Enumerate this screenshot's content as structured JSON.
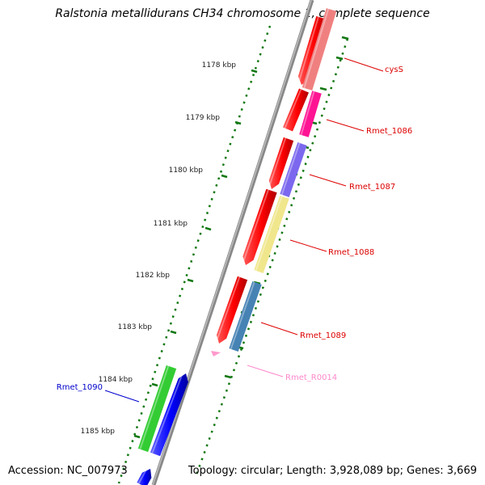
{
  "title": "Ralstonia metallidurans CH34 chromosome 1, complete sequence",
  "footer": {
    "accession": "Accession: NC_007973",
    "summary": "Topology: circular; Length: 3,928,089 bp; Genes: 3,669"
  },
  "ticks": [
    {
      "label": "1178 kbp"
    },
    {
      "label": "1179 kbp"
    },
    {
      "label": "1180 kbp"
    },
    {
      "label": "1181 kbp"
    },
    {
      "label": "1182 kbp"
    },
    {
      "label": "1183 kbp"
    },
    {
      "label": "1184 kbp"
    },
    {
      "label": "1185 kbp"
    }
  ],
  "genes": [
    {
      "name": "cysS",
      "color": "#f08080",
      "label_color": "#dd0000"
    },
    {
      "name": "Rmet_1086",
      "color": "#ff1493",
      "label_color": "#dd0000"
    },
    {
      "name": "Rmet_1087",
      "color": "#7b68ee",
      "label_color": "#dd0000"
    },
    {
      "name": "Rmet_1088",
      "color": "#f0e68c",
      "label_color": "#dd0000"
    },
    {
      "name": "Rmet_1089",
      "color": "#4682b4",
      "label_color": "#dd0000"
    },
    {
      "name": "Rmet_R0014",
      "color": "#ff99cc",
      "label_color": "#ff88cc"
    },
    {
      "name": "Rmet_1090",
      "color": "#33cc33",
      "label_color": "#0000cc"
    }
  ],
  "colors": {
    "backbone": "#8a8a8a",
    "forward_strand": "#ff0000",
    "reverse_strand": "#0000ff",
    "tick_mark": "#117711"
  }
}
